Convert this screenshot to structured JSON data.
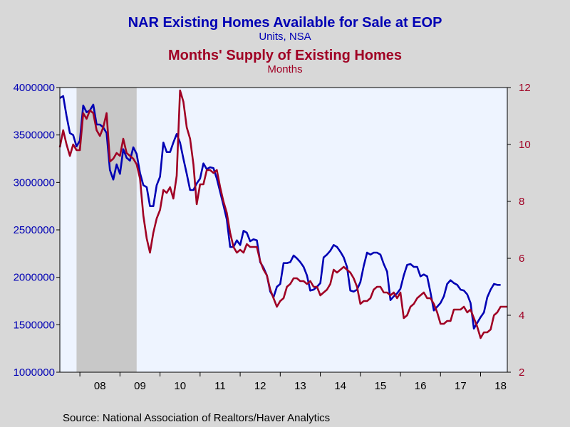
{
  "chart_data": {
    "type": "line",
    "title": "NAR Existing Homes Available for Sale at EOP",
    "subtitle": "Units, NSA",
    "title2": "Months' Supply of Existing Homes",
    "subtitle2": "Months",
    "source": "Source:  National Association of Realtors/Haver Analytics",
    "colors": {
      "left": "#0000b4",
      "right": "#a00024",
      "recession": "#c8c8c8",
      "plot_bg": "#eef4ff",
      "page_bg": "#d8d8d8"
    },
    "x_range": [
      "2007-07",
      "2018-09"
    ],
    "x_tick_labels": [
      "08",
      "09",
      "10",
      "11",
      "12",
      "13",
      "14",
      "15",
      "16",
      "17",
      "18"
    ],
    "y_left": {
      "range": [
        1000000,
        4000000
      ],
      "ticks": [
        "1000000",
        "1500000",
        "2000000",
        "2500000",
        "3000000",
        "3500000",
        "4000000"
      ]
    },
    "y_right": {
      "range": [
        2,
        12
      ],
      "ticks": [
        "2",
        "4",
        "6",
        "8",
        "10",
        "12"
      ]
    },
    "recession": [
      "2007-12",
      "2009-06"
    ],
    "grid": false,
    "legend": "none",
    "series": [
      {
        "axis": "left",
        "points": [
          [
            "2007-07",
            3890000
          ],
          [
            "2007-08",
            3910000
          ],
          [
            "2007-09",
            3700000
          ],
          [
            "2007-10",
            3520000
          ],
          [
            "2007-11",
            3500000
          ],
          [
            "2007-12",
            3380000
          ],
          [
            "2008-01",
            3440000
          ],
          [
            "2008-02",
            3810000
          ],
          [
            "2008-03",
            3740000
          ],
          [
            "2008-04",
            3760000
          ],
          [
            "2008-05",
            3820000
          ],
          [
            "2008-06",
            3610000
          ],
          [
            "2008-07",
            3610000
          ],
          [
            "2008-08",
            3580000
          ],
          [
            "2008-09",
            3520000
          ],
          [
            "2008-10",
            3130000
          ],
          [
            "2008-11",
            3030000
          ],
          [
            "2008-12",
            3190000
          ],
          [
            "2009-01",
            3090000
          ],
          [
            "2009-02",
            3350000
          ],
          [
            "2009-03",
            3260000
          ],
          [
            "2009-04",
            3230000
          ],
          [
            "2009-05",
            3370000
          ],
          [
            "2009-06",
            3300000
          ],
          [
            "2009-07",
            3100000
          ],
          [
            "2009-08",
            2970000
          ],
          [
            "2009-09",
            2950000
          ],
          [
            "2009-10",
            2750000
          ],
          [
            "2009-11",
            2750000
          ],
          [
            "2009-12",
            2970000
          ],
          [
            "2010-01",
            3060000
          ],
          [
            "2010-02",
            3420000
          ],
          [
            "2010-03",
            3320000
          ],
          [
            "2010-04",
            3320000
          ],
          [
            "2010-05",
            3420000
          ],
          [
            "2010-06",
            3510000
          ],
          [
            "2010-07",
            3420000
          ],
          [
            "2010-08",
            3250000
          ],
          [
            "2010-09",
            3090000
          ],
          [
            "2010-10",
            2920000
          ],
          [
            "2010-11",
            2920000
          ],
          [
            "2010-12",
            2990000
          ],
          [
            "2011-01",
            3040000
          ],
          [
            "2011-02",
            3200000
          ],
          [
            "2011-03",
            3140000
          ],
          [
            "2011-04",
            3160000
          ],
          [
            "2011-05",
            3150000
          ],
          [
            "2011-06",
            3040000
          ],
          [
            "2011-07",
            2900000
          ],
          [
            "2011-08",
            2760000
          ],
          [
            "2011-09",
            2610000
          ],
          [
            "2011-10",
            2320000
          ],
          [
            "2011-11",
            2320000
          ],
          [
            "2011-12",
            2390000
          ],
          [
            "2012-01",
            2340000
          ],
          [
            "2012-02",
            2490000
          ],
          [
            "2012-03",
            2470000
          ],
          [
            "2012-04",
            2380000
          ],
          [
            "2012-05",
            2400000
          ],
          [
            "2012-06",
            2390000
          ],
          [
            "2012-07",
            2160000
          ],
          [
            "2012-08",
            2100000
          ],
          [
            "2012-09",
            2020000
          ],
          [
            "2012-10",
            1850000
          ],
          [
            "2012-11",
            1790000
          ],
          [
            "2012-12",
            1900000
          ],
          [
            "2013-01",
            1930000
          ],
          [
            "2013-02",
            2150000
          ],
          [
            "2013-03",
            2150000
          ],
          [
            "2013-04",
            2160000
          ],
          [
            "2013-05",
            2230000
          ],
          [
            "2013-06",
            2200000
          ],
          [
            "2013-07",
            2160000
          ],
          [
            "2013-08",
            2110000
          ],
          [
            "2013-09",
            2020000
          ],
          [
            "2013-10",
            1860000
          ],
          [
            "2013-11",
            1870000
          ],
          [
            "2013-12",
            1900000
          ],
          [
            "2014-01",
            1940000
          ],
          [
            "2014-02",
            2210000
          ],
          [
            "2014-03",
            2240000
          ],
          [
            "2014-04",
            2280000
          ],
          [
            "2014-05",
            2340000
          ],
          [
            "2014-06",
            2320000
          ],
          [
            "2014-07",
            2270000
          ],
          [
            "2014-08",
            2210000
          ],
          [
            "2014-09",
            2110000
          ],
          [
            "2014-10",
            1860000
          ],
          [
            "2014-11",
            1850000
          ],
          [
            "2014-12",
            1870000
          ],
          [
            "2015-01",
            1950000
          ],
          [
            "2015-02",
            2120000
          ],
          [
            "2015-03",
            2260000
          ],
          [
            "2015-04",
            2240000
          ],
          [
            "2015-05",
            2260000
          ],
          [
            "2015-06",
            2260000
          ],
          [
            "2015-07",
            2240000
          ],
          [
            "2015-08",
            2140000
          ],
          [
            "2015-09",
            2060000
          ],
          [
            "2015-10",
            1760000
          ],
          [
            "2015-11",
            1800000
          ],
          [
            "2015-12",
            1830000
          ],
          [
            "2016-01",
            1880000
          ],
          [
            "2016-02",
            2020000
          ],
          [
            "2016-03",
            2130000
          ],
          [
            "2016-04",
            2140000
          ],
          [
            "2016-05",
            2110000
          ],
          [
            "2016-06",
            2110000
          ],
          [
            "2016-07",
            2010000
          ],
          [
            "2016-08",
            2030000
          ],
          [
            "2016-09",
            2010000
          ],
          [
            "2016-10",
            1840000
          ],
          [
            "2016-11",
            1650000
          ],
          [
            "2016-12",
            1690000
          ],
          [
            "2017-01",
            1730000
          ],
          [
            "2017-02",
            1800000
          ],
          [
            "2017-03",
            1930000
          ],
          [
            "2017-04",
            1970000
          ],
          [
            "2017-05",
            1940000
          ],
          [
            "2017-06",
            1920000
          ],
          [
            "2017-07",
            1870000
          ],
          [
            "2017-08",
            1860000
          ],
          [
            "2017-09",
            1820000
          ],
          [
            "2017-10",
            1730000
          ],
          [
            "2017-11",
            1460000
          ],
          [
            "2017-12",
            1520000
          ],
          [
            "2018-01",
            1580000
          ],
          [
            "2018-02",
            1630000
          ],
          [
            "2018-03",
            1790000
          ],
          [
            "2018-04",
            1870000
          ],
          [
            "2018-05",
            1930000
          ],
          [
            "2018-06",
            1920000
          ],
          [
            "2018-07",
            1920000
          ]
        ]
      },
      {
        "axis": "right",
        "points": [
          [
            "2007-07",
            9.9
          ],
          [
            "2007-08",
            10.5
          ],
          [
            "2007-09",
            10.0
          ],
          [
            "2007-10",
            9.6
          ],
          [
            "2007-11",
            10.0
          ],
          [
            "2007-12",
            9.8
          ],
          [
            "2008-01",
            9.8
          ],
          [
            "2008-02",
            11.1
          ],
          [
            "2008-03",
            10.9
          ],
          [
            "2008-04",
            11.2
          ],
          [
            "2008-05",
            11.1
          ],
          [
            "2008-06",
            10.5
          ],
          [
            "2008-07",
            10.3
          ],
          [
            "2008-08",
            10.6
          ],
          [
            "2008-09",
            11.1
          ],
          [
            "2008-10",
            9.4
          ],
          [
            "2008-11",
            9.5
          ],
          [
            "2008-12",
            9.7
          ],
          [
            "2009-01",
            9.6
          ],
          [
            "2009-02",
            10.2
          ],
          [
            "2009-03",
            9.7
          ],
          [
            "2009-04",
            9.6
          ],
          [
            "2009-05",
            9.5
          ],
          [
            "2009-06",
            9.3
          ],
          [
            "2009-07",
            8.8
          ],
          [
            "2009-08",
            7.5
          ],
          [
            "2009-09",
            6.7
          ],
          [
            "2009-10",
            6.2
          ],
          [
            "2009-11",
            6.9
          ],
          [
            "2009-12",
            7.4
          ],
          [
            "2010-01",
            7.7
          ],
          [
            "2010-02",
            8.4
          ],
          [
            "2010-03",
            8.3
          ],
          [
            "2010-04",
            8.5
          ],
          [
            "2010-05",
            8.1
          ],
          [
            "2010-06",
            8.9
          ],
          [
            "2010-07",
            11.9
          ],
          [
            "2010-08",
            11.5
          ],
          [
            "2010-09",
            10.6
          ],
          [
            "2010-10",
            10.2
          ],
          [
            "2010-11",
            9.3
          ],
          [
            "2010-12",
            7.9
          ],
          [
            "2011-01",
            8.6
          ],
          [
            "2011-02",
            8.6
          ],
          [
            "2011-03",
            9.1
          ],
          [
            "2011-04",
            9.1
          ],
          [
            "2011-05",
            9.0
          ],
          [
            "2011-06",
            9.1
          ],
          [
            "2011-07",
            8.5
          ],
          [
            "2011-08",
            8.0
          ],
          [
            "2011-09",
            7.6
          ],
          [
            "2011-10",
            6.9
          ],
          [
            "2011-11",
            6.4
          ],
          [
            "2011-12",
            6.2
          ],
          [
            "2012-01",
            6.3
          ],
          [
            "2012-02",
            6.2
          ],
          [
            "2012-03",
            6.5
          ],
          [
            "2012-04",
            6.4
          ],
          [
            "2012-05",
            6.4
          ],
          [
            "2012-06",
            6.4
          ],
          [
            "2012-07",
            5.9
          ],
          [
            "2012-08",
            5.6
          ],
          [
            "2012-09",
            5.4
          ],
          [
            "2012-10",
            4.9
          ],
          [
            "2012-11",
            4.6
          ],
          [
            "2012-12",
            4.3
          ],
          [
            "2013-01",
            4.5
          ],
          [
            "2013-02",
            4.6
          ],
          [
            "2013-03",
            5.0
          ],
          [
            "2013-04",
            5.1
          ],
          [
            "2013-05",
            5.3
          ],
          [
            "2013-06",
            5.3
          ],
          [
            "2013-07",
            5.2
          ],
          [
            "2013-08",
            5.2
          ],
          [
            "2013-09",
            5.1
          ],
          [
            "2013-10",
            5.2
          ],
          [
            "2013-11",
            5.0
          ],
          [
            "2013-12",
            5.0
          ],
          [
            "2014-01",
            4.7
          ],
          [
            "2014-02",
            4.8
          ],
          [
            "2014-03",
            4.9
          ],
          [
            "2014-04",
            5.1
          ],
          [
            "2014-05",
            5.6
          ],
          [
            "2014-06",
            5.5
          ],
          [
            "2014-07",
            5.6
          ],
          [
            "2014-08",
            5.7
          ],
          [
            "2014-09",
            5.6
          ],
          [
            "2014-10",
            5.5
          ],
          [
            "2014-11",
            5.3
          ],
          [
            "2014-12",
            5.0
          ],
          [
            "2015-01",
            4.4
          ],
          [
            "2015-02",
            4.5
          ],
          [
            "2015-03",
            4.5
          ],
          [
            "2015-04",
            4.6
          ],
          [
            "2015-05",
            4.9
          ],
          [
            "2015-06",
            5.0
          ],
          [
            "2015-07",
            5.0
          ],
          [
            "2015-08",
            4.8
          ],
          [
            "2015-09",
            4.8
          ],
          [
            "2015-10",
            4.7
          ],
          [
            "2015-11",
            4.8
          ],
          [
            "2015-12",
            4.6
          ],
          [
            "2016-01",
            4.8
          ],
          [
            "2016-02",
            3.9
          ],
          [
            "2016-03",
            4.0
          ],
          [
            "2016-04",
            4.3
          ],
          [
            "2016-05",
            4.4
          ],
          [
            "2016-06",
            4.6
          ],
          [
            "2016-07",
            4.7
          ],
          [
            "2016-08",
            4.8
          ],
          [
            "2016-09",
            4.6
          ],
          [
            "2016-10",
            4.6
          ],
          [
            "2016-11",
            4.4
          ],
          [
            "2016-12",
            4.1
          ],
          [
            "2017-01",
            3.7
          ],
          [
            "2017-02",
            3.7
          ],
          [
            "2017-03",
            3.8
          ],
          [
            "2017-04",
            3.8
          ],
          [
            "2017-05",
            4.2
          ],
          [
            "2017-06",
            4.2
          ],
          [
            "2017-07",
            4.2
          ],
          [
            "2017-08",
            4.3
          ],
          [
            "2017-09",
            4.1
          ],
          [
            "2017-10",
            4.2
          ],
          [
            "2017-11",
            3.9
          ],
          [
            "2017-12",
            3.6
          ],
          [
            "2018-01",
            3.2
          ],
          [
            "2018-02",
            3.4
          ],
          [
            "2018-03",
            3.4
          ],
          [
            "2018-04",
            3.5
          ],
          [
            "2018-05",
            4.0
          ],
          [
            "2018-06",
            4.1
          ],
          [
            "2018-07",
            4.3
          ],
          [
            "2018-08",
            4.3
          ],
          [
            "2018-09",
            4.3
          ]
        ]
      }
    ]
  }
}
